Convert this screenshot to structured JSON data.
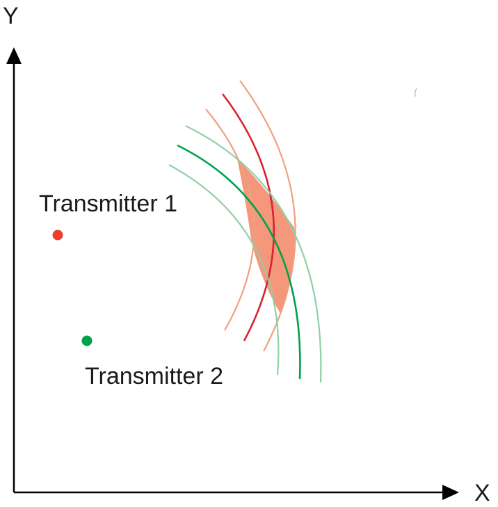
{
  "axes": {
    "x_label": "X",
    "y_label": "Y"
  },
  "transmitters": [
    {
      "label": "Transmitter 1",
      "color": "#e8412c"
    },
    {
      "label": "Transmitter 2",
      "color": "#00a14b"
    }
  ],
  "colors": {
    "transmitter_1_ring": "#d9232f",
    "transmitter_1_uncertainty": "#f0a080",
    "transmitter_2_ring": "#00a14b",
    "transmitter_2_uncertainty": "#8fd0a8",
    "intersection_region": "#f5977a",
    "axis": "#000000"
  }
}
